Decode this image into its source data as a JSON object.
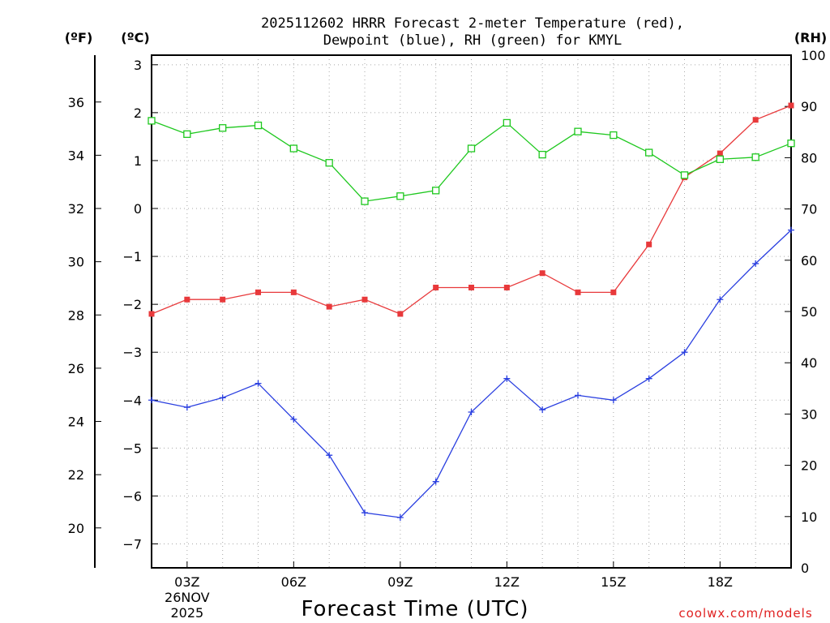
{
  "chart_data": {
    "type": "line",
    "title_line1": "2025112602 HRRR Forecast 2-meter Temperature (red),",
    "title_line2": "Dewpoint (blue), RH (green) for KMYL",
    "xlabel": "Forecast Time (UTC)",
    "credit": "coolwx.com/models",
    "units": {
      "fahrenheit": "(ºF)",
      "celsius": "(ºC)",
      "rh": "(RH)"
    },
    "x_hours": [
      2,
      3,
      4,
      5,
      6,
      7,
      8,
      9,
      10,
      11,
      12,
      13,
      14,
      15,
      16,
      17,
      18,
      19,
      20
    ],
    "xlim": [
      2,
      20
    ],
    "x_ticks": [
      {
        "hour": 3,
        "label": "03Z",
        "sub1": "26NOV",
        "sub2": "2025"
      },
      {
        "hour": 6,
        "label": "06Z"
      },
      {
        "hour": 9,
        "label": "09Z"
      },
      {
        "hour": 12,
        "label": "12Z"
      },
      {
        "hour": 15,
        "label": "15Z"
      },
      {
        "hour": 18,
        "label": "18Z"
      }
    ],
    "celsius_axis": {
      "ylim": [
        -7.5,
        3.2
      ],
      "ticks": [
        3,
        2,
        1,
        0,
        -1,
        -2,
        -3,
        -4,
        -5,
        -6,
        -7
      ],
      "tick_labels": [
        "3",
        "2",
        "1",
        "0",
        "−1",
        "−2",
        "−3",
        "−4",
        "−5",
        "−6",
        "−7"
      ]
    },
    "fahrenheit_axis": {
      "ylim": [
        18.5,
        37.76
      ],
      "ticks": [
        36,
        34,
        32,
        30,
        28,
        26,
        24,
        22,
        20
      ],
      "tick_labels": [
        "36",
        "34",
        "32",
        "30",
        "28",
        "26",
        "24",
        "22",
        "20"
      ]
    },
    "rh_axis": {
      "ylim": [
        0,
        100
      ],
      "ticks": [
        100,
        90,
        80,
        70,
        60,
        50,
        40,
        30,
        20,
        10,
        0
      ],
      "tick_labels": [
        "100",
        "90",
        "80",
        "70",
        "60",
        "50",
        "40",
        "30",
        "20",
        "10",
        "0"
      ]
    },
    "series": [
      {
        "name": "Temperature",
        "axis": "C",
        "color": "#e8393b",
        "marker": "filled-square",
        "values": [
          -2.2,
          -1.9,
          -1.9,
          -1.75,
          -1.75,
          -2.05,
          -1.9,
          -2.2,
          -1.65,
          -1.65,
          -1.65,
          -1.35,
          -1.75,
          -1.75,
          -0.75,
          0.65,
          1.15,
          1.85,
          2.15
        ]
      },
      {
        "name": "Dewpoint",
        "axis": "C",
        "color": "#2a3fe0",
        "marker": "plus",
        "values": [
          -4.0,
          -4.15,
          -3.95,
          -3.65,
          -4.4,
          -5.15,
          -6.35,
          -6.45,
          -5.7,
          -4.25,
          -3.55,
          -4.2,
          -3.9,
          -4.0,
          -3.55,
          -3.0,
          -1.9,
          -1.15,
          -0.45
        ]
      },
      {
        "name": "RH",
        "axis": "RH",
        "color": "#1ec81e",
        "marker": "open-square",
        "values": [
          87.2,
          84.6,
          85.8,
          86.3,
          81.8,
          79.0,
          71.5,
          72.5,
          73.6,
          81.8,
          86.8,
          80.6,
          85.1,
          84.4,
          81.0,
          76.6,
          79.7,
          80.1,
          82.8
        ]
      }
    ]
  }
}
